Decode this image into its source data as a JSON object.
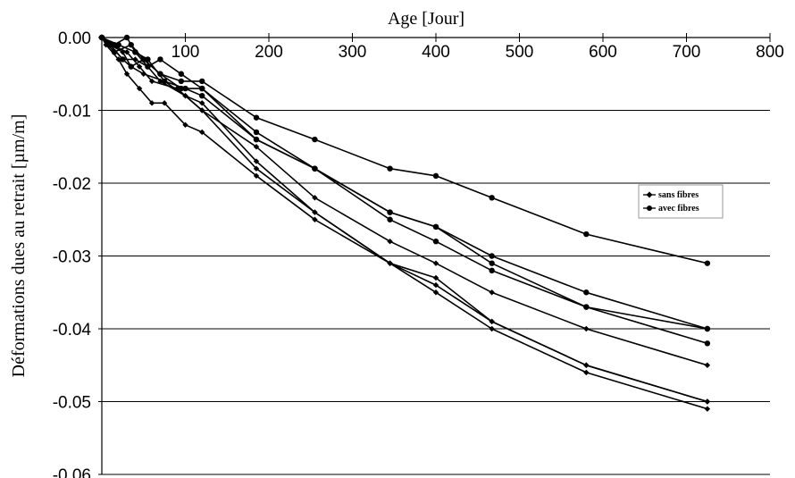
{
  "chart_data": {
    "type": "line",
    "xlabel": "Age [Jour]",
    "ylabel": "Déformations dues au retrait  [µm/m]",
    "xlim": [
      0,
      800
    ],
    "ylim": [
      -0.06,
      0.0
    ],
    "x_ticks": [
      "100",
      "200",
      "300",
      "400",
      "500",
      "600",
      "700",
      "800"
    ],
    "y_ticks": [
      "0.00",
      "-0.01",
      "-0.02",
      "-0.03",
      "-0.04",
      "-0.05",
      "-0.06"
    ],
    "x_axis_position": "top",
    "grid": "horizontal",
    "legend_position": "right",
    "legend": [
      {
        "label": "sans fibres",
        "marker": "diamond"
      },
      {
        "label": "avec fibres",
        "marker": "circle"
      }
    ],
    "series": [
      {
        "group": "sans fibres",
        "marker": "diamond",
        "points": [
          [
            0,
            0
          ],
          [
            5,
            -0.001
          ],
          [
            20,
            -0.003
          ],
          [
            30,
            -0.005
          ],
          [
            45,
            -0.007
          ],
          [
            60,
            -0.009
          ],
          [
            75,
            -0.009
          ],
          [
            100,
            -0.012
          ],
          [
            120,
            -0.013
          ],
          [
            185,
            -0.019
          ],
          [
            255,
            -0.025
          ],
          [
            345,
            -0.031
          ],
          [
            400,
            -0.034
          ],
          [
            467,
            -0.039
          ],
          [
            580,
            -0.045
          ],
          [
            725,
            -0.05
          ]
        ]
      },
      {
        "group": "sans fibres",
        "marker": "diamond",
        "points": [
          [
            0,
            0
          ],
          [
            10,
            -0.001
          ],
          [
            25,
            -0.002
          ],
          [
            35,
            -0.004
          ],
          [
            50,
            -0.005
          ],
          [
            75,
            -0.006
          ],
          [
            100,
            -0.008
          ],
          [
            120,
            -0.009
          ],
          [
            185,
            -0.017
          ],
          [
            255,
            -0.024
          ],
          [
            345,
            -0.031
          ],
          [
            400,
            -0.035
          ],
          [
            467,
            -0.04
          ],
          [
            580,
            -0.046
          ],
          [
            725,
            -0.051
          ]
        ]
      },
      {
        "group": "sans fibres",
        "marker": "diamond",
        "points": [
          [
            0,
            0
          ],
          [
            10,
            -0.001
          ],
          [
            25,
            -0.003
          ],
          [
            40,
            -0.003
          ],
          [
            55,
            -0.004
          ],
          [
            70,
            -0.006
          ],
          [
            100,
            -0.008
          ],
          [
            120,
            -0.01
          ],
          [
            185,
            -0.018
          ],
          [
            255,
            -0.024
          ],
          [
            345,
            -0.031
          ],
          [
            400,
            -0.033
          ],
          [
            467,
            -0.039
          ],
          [
            580,
            -0.045
          ],
          [
            725,
            -0.05
          ]
        ]
      },
      {
        "group": "sans fibres",
        "marker": "diamond",
        "points": [
          [
            0,
            0
          ],
          [
            12,
            -0.001
          ],
          [
            30,
            -0.002
          ],
          [
            45,
            -0.004
          ],
          [
            60,
            -0.006
          ],
          [
            90,
            -0.007
          ],
          [
            120,
            -0.01
          ],
          [
            185,
            -0.015
          ],
          [
            255,
            -0.022
          ],
          [
            345,
            -0.028
          ],
          [
            400,
            -0.031
          ],
          [
            467,
            -0.035
          ],
          [
            580,
            -0.04
          ],
          [
            725,
            -0.045
          ]
        ]
      },
      {
        "group": "avec fibres",
        "marker": "circle",
        "points": [
          [
            0,
            0
          ],
          [
            10,
            -0.001
          ],
          [
            25,
            -0.003
          ],
          [
            35,
            -0.004
          ],
          [
            50,
            -0.003
          ],
          [
            70,
            -0.005
          ],
          [
            95,
            -0.006
          ],
          [
            120,
            -0.006
          ],
          [
            185,
            -0.011
          ],
          [
            255,
            -0.014
          ],
          [
            345,
            -0.018
          ],
          [
            400,
            -0.019
          ],
          [
            467,
            -0.022
          ],
          [
            580,
            -0.027
          ],
          [
            725,
            -0.031
          ]
        ]
      },
      {
        "group": "avec fibres",
        "marker": "circle",
        "points": [
          [
            0,
            0
          ],
          [
            15,
            -0.001
          ],
          [
            30,
            0.0
          ],
          [
            40,
            -0.002
          ],
          [
            55,
            -0.004
          ],
          [
            70,
            -0.003
          ],
          [
            95,
            -0.005
          ],
          [
            120,
            -0.007
          ],
          [
            185,
            -0.013
          ],
          [
            255,
            -0.018
          ],
          [
            345,
            -0.024
          ],
          [
            400,
            -0.026
          ],
          [
            467,
            -0.03
          ],
          [
            580,
            -0.035
          ],
          [
            725,
            -0.04
          ]
        ]
      },
      {
        "group": "avec fibres",
        "marker": "circle",
        "points": [
          [
            0,
            0
          ],
          [
            15,
            -0.002
          ],
          [
            35,
            -0.001
          ],
          [
            50,
            -0.003
          ],
          [
            70,
            -0.005
          ],
          [
            95,
            -0.007
          ],
          [
            120,
            -0.007
          ],
          [
            185,
            -0.014
          ],
          [
            255,
            -0.018
          ],
          [
            345,
            -0.025
          ],
          [
            400,
            -0.028
          ],
          [
            467,
            -0.032
          ],
          [
            580,
            -0.037
          ],
          [
            725,
            -0.042
          ]
        ]
      },
      {
        "group": "avec fibres",
        "marker": "circle",
        "points": [
          [
            0,
            0
          ],
          [
            20,
            -0.001
          ],
          [
            40,
            -0.002
          ],
          [
            55,
            -0.003
          ],
          [
            75,
            -0.006
          ],
          [
            100,
            -0.007
          ],
          [
            120,
            -0.008
          ],
          [
            185,
            -0.014
          ],
          [
            255,
            -0.018
          ],
          [
            345,
            -0.024
          ],
          [
            400,
            -0.026
          ],
          [
            467,
            -0.031
          ],
          [
            580,
            -0.037
          ],
          [
            725,
            -0.04
          ]
        ]
      }
    ]
  }
}
